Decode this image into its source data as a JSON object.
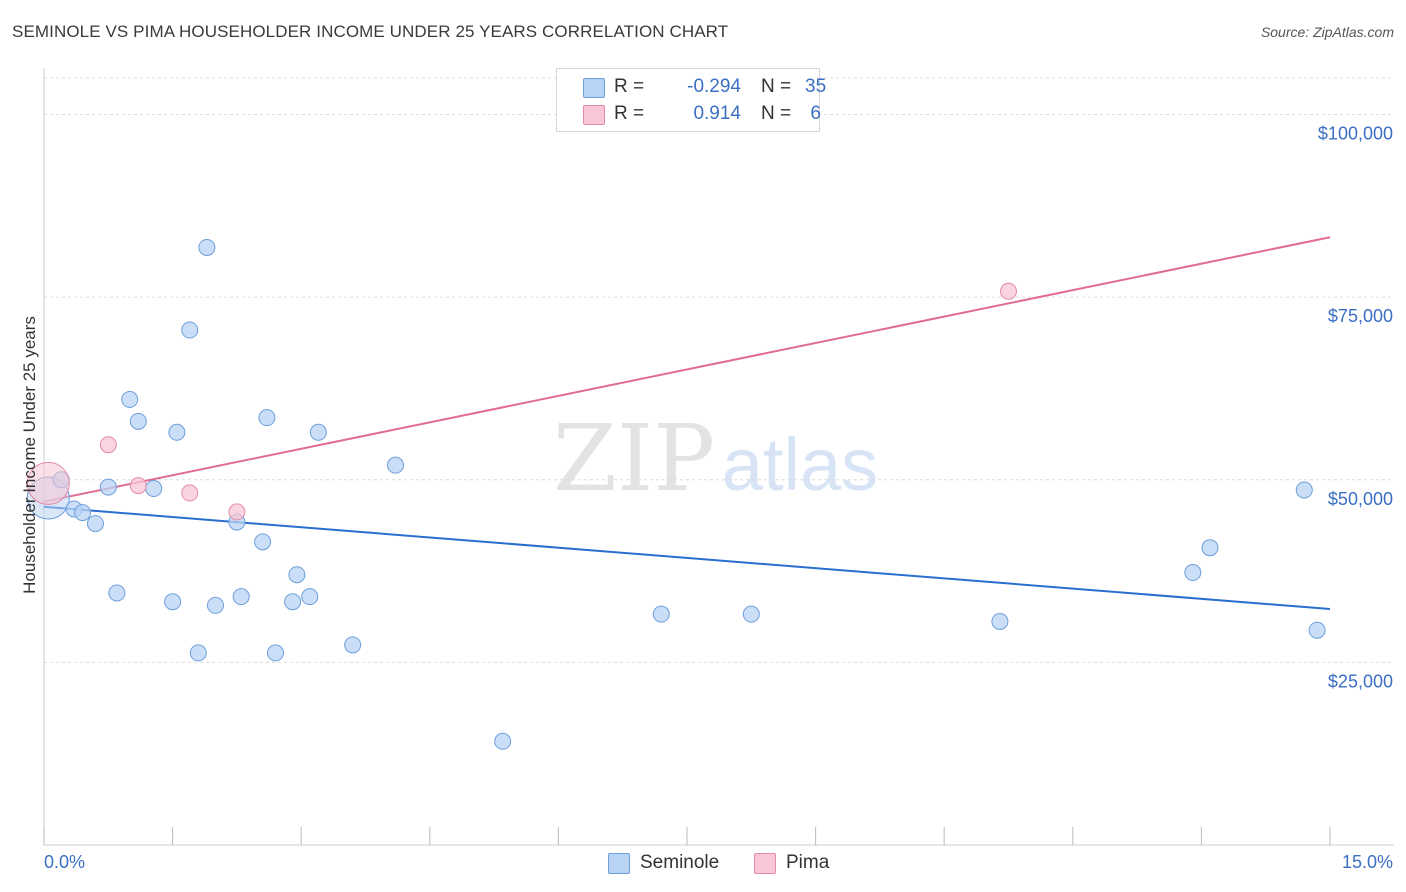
{
  "title": "SEMINOLE VS PIMA HOUSEHOLDER INCOME UNDER 25 YEARS CORRELATION CHART",
  "source": "Source: ZipAtlas.com",
  "colors": {
    "seminole_fill": "#b9d3f4",
    "seminole_stroke": "#6d9fdc",
    "seminole_line": "#2a6fd0",
    "pima_fill": "#f8c6d4",
    "pima_stroke": "#e48aa6",
    "pima_line": "#e06c94",
    "axis_label": "#3b6fc4",
    "grid": "#dcdcdc"
  },
  "legend_top": {
    "rows": [
      {
        "series": "Seminole",
        "r_label": "R =",
        "r_value": "-0.294",
        "n_label": "N =",
        "n_value": "35"
      },
      {
        "series": "Pima",
        "r_label": "R =",
        "r_value": "0.914",
        "n_label": "N =",
        "n_value": "6"
      }
    ]
  },
  "legend_bottom": {
    "seminole": "Seminole",
    "pima": "Pima"
  },
  "chart_data": {
    "type": "scatter",
    "title": "SEMINOLE VS PIMA HOUSEHOLDER INCOME UNDER 25 YEARS CORRELATION CHART",
    "xlabel": "",
    "ylabel": "Householder Income Under 25 years",
    "xlim": [
      0,
      15
    ],
    "ylim": [
      0,
      105000
    ],
    "x_tick_labels": [
      "0.0%",
      "15.0%"
    ],
    "y_ticks": [
      25000,
      50000,
      75000,
      100000
    ],
    "y_tick_labels": [
      "$25,000",
      "$50,000",
      "$75,000",
      "$100,000"
    ],
    "grid": true,
    "watermark": "ZIPatlas",
    "series": [
      {
        "name": "Seminole",
        "points": [
          [
            0.05,
            47500
          ],
          [
            0.2,
            50000
          ],
          [
            0.35,
            46000
          ],
          [
            0.45,
            45500
          ],
          [
            0.6,
            44000
          ],
          [
            0.75,
            49000
          ],
          [
            0.85,
            34500
          ],
          [
            1.0,
            61000
          ],
          [
            1.1,
            58000
          ],
          [
            1.28,
            48800
          ],
          [
            1.5,
            33300
          ],
          [
            1.55,
            56500
          ],
          [
            1.7,
            70500
          ],
          [
            1.8,
            26300
          ],
          [
            1.9,
            81800
          ],
          [
            2.0,
            32800
          ],
          [
            2.25,
            44200
          ],
          [
            2.3,
            34000
          ],
          [
            2.55,
            41500
          ],
          [
            2.6,
            58500
          ],
          [
            2.7,
            26300
          ],
          [
            2.9,
            33300
          ],
          [
            2.95,
            37000
          ],
          [
            3.1,
            34000
          ],
          [
            3.2,
            56500
          ],
          [
            3.6,
            27400
          ],
          [
            4.1,
            52000
          ],
          [
            5.35,
            14200
          ],
          [
            7.2,
            31600
          ],
          [
            8.25,
            31600
          ],
          [
            11.15,
            30600
          ],
          [
            13.4,
            37300
          ],
          [
            13.6,
            40700
          ],
          [
            14.7,
            48600
          ],
          [
            14.85,
            29400
          ]
        ],
        "trend": {
          "x": [
            0,
            15
          ],
          "y": [
            46300,
            32300
          ]
        }
      },
      {
        "name": "Pima",
        "points": [
          [
            0.05,
            49500
          ],
          [
            0.75,
            54800
          ],
          [
            1.1,
            49200
          ],
          [
            1.7,
            48200
          ],
          [
            2.25,
            45600
          ],
          [
            11.25,
            75800
          ]
        ],
        "trend": {
          "x": [
            0,
            15
          ],
          "y": [
            47000,
            83200
          ]
        }
      }
    ]
  }
}
